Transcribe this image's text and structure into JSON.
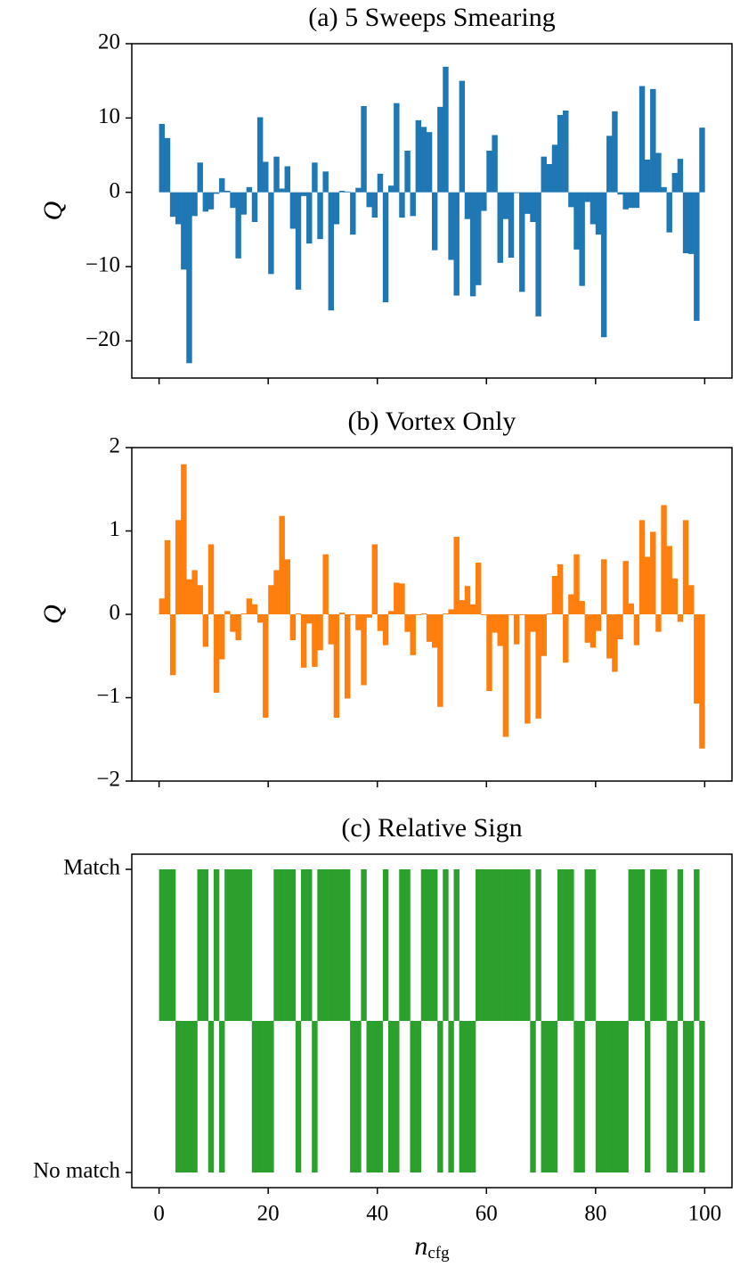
{
  "chart_data": [
    {
      "type": "bar",
      "title": "(a) 5 Sweeps Smearing",
      "ylabel": "Q",
      "color": "#1f77b4",
      "xlim": [
        -5,
        105
      ],
      "xticks": [
        0,
        20,
        40,
        60,
        80,
        100
      ],
      "ylim": [
        -25,
        20
      ],
      "yticks": [
        {
          "value": -20,
          "label": "−20"
        },
        {
          "value": -10,
          "label": "−10"
        },
        0,
        10,
        20
      ],
      "values": [
        9.2,
        7.3,
        -3.3,
        -4.3,
        -10.4,
        -23,
        -3.2,
        4.0,
        -2.6,
        -2.3,
        -0.2,
        1.9,
        0.2,
        -2.1,
        -8.9,
        -3.0,
        0.7,
        -4.0,
        10.1,
        4.1,
        -11.0,
        4.8,
        0.5,
        3.5,
        -4.9,
        -13.1,
        -0.5,
        -6.9,
        4.0,
        -6.3,
        2.8,
        -15.9,
        -4.3,
        0.2,
        0.1,
        -5.7,
        0.6,
        11.6,
        -2.0,
        -3.4,
        2.5,
        -14.8,
        0.9,
        12.0,
        -3.4,
        5.6,
        -3.2,
        9.7,
        8.8,
        8.1,
        -7.8,
        11.5,
        16.9,
        -9.1,
        -13.9,
        15.0,
        -3.6,
        -14.0,
        -12.5,
        -2.5,
        5.6,
        7.7,
        -9.5,
        -3.6,
        -8.8,
        -0.1,
        -13.4,
        -2.9,
        -4.0,
        -16.7,
        4.8,
        3.8,
        6.4,
        10.4,
        11.0,
        -2.0,
        -7.7,
        -12.6,
        -1.3,
        -4.3,
        -5.7,
        -19.5,
        7.6,
        10.9,
        -0.3,
        -2.3,
        -2.1,
        -2.1,
        14.3,
        4.4,
        13.9,
        5.3,
        0.7,
        -5.4,
        2.6,
        4.5,
        -8.2,
        -8.3,
        -17.3,
        8.7
      ]
    },
    {
      "type": "bar",
      "title": "(b) Vortex Only",
      "ylabel": "Q",
      "color": "#ff7f0e",
      "xlim": [
        -5,
        105
      ],
      "xticks": [
        0,
        20,
        40,
        60,
        80,
        100
      ],
      "ylim": [
        -2,
        2
      ],
      "yticks": [
        {
          "value": -2,
          "label": "−2"
        },
        {
          "value": -1,
          "label": "−1"
        },
        0,
        1,
        2
      ],
      "values": [
        0.19,
        0.89,
        -0.73,
        1.13,
        1.8,
        0.42,
        0.53,
        0.35,
        -0.39,
        0.84,
        -0.94,
        -0.54,
        0.04,
        -0.21,
        -0.31,
        0.01,
        0.19,
        0.12,
        -0.1,
        -1.24,
        0.35,
        0.53,
        1.18,
        0.66,
        -0.31,
        0.01,
        -0.64,
        -0.11,
        -0.63,
        -0.43,
        0.72,
        -0.36,
        -1.24,
        0.02,
        -1.01,
        -0.01,
        -0.19,
        -0.85,
        -0.04,
        0.84,
        -0.2,
        -0.37,
        0.04,
        0.38,
        0.37,
        -0.21,
        -0.49,
        -0.01,
        0.01,
        -0.33,
        -0.4,
        -1.11,
        0.01,
        0.06,
        0.93,
        0.17,
        0.34,
        0.12,
        0.62,
        -0.01,
        -0.92,
        -0.22,
        -0.38,
        -1.47,
        -0.01,
        -0.36,
        -0.01,
        -1.31,
        -0.21,
        -1.25,
        -0.5,
        0.01,
        0.46,
        0.6,
        -0.58,
        0.24,
        0.72,
        0.16,
        -0.34,
        -0.4,
        -0.2,
        0.66,
        -0.53,
        -0.69,
        -0.3,
        0.64,
        0.13,
        -0.37,
        1.13,
        0.69,
        0.99,
        -0.21,
        1.31,
        0.82,
        0.43,
        -0.09,
        1.13,
        0.35,
        -1.07,
        -1.61
      ]
    },
    {
      "type": "bar",
      "title": "(c) Relative Sign",
      "color": "#2ca02c",
      "bar_base": 0.5,
      "xlabel": "n",
      "xlabel_subscript": "cfg",
      "xlim": [
        -5,
        105
      ],
      "xticks": [
        0,
        20,
        40,
        60,
        80,
        100
      ],
      "ylim": [
        -0.05,
        1.05
      ],
      "yticks": [
        {
          "value": 0,
          "label": "No match"
        },
        {
          "value": 1,
          "label": "Match"
        }
      ],
      "values": [
        1,
        1,
        1,
        0,
        0,
        0,
        0,
        1,
        1,
        0,
        1,
        0,
        1,
        1,
        1,
        1,
        1,
        0,
        0,
        0,
        0,
        1,
        1,
        1,
        1,
        0,
        1,
        1,
        0,
        1,
        1,
        1,
        1,
        1,
        1,
        0,
        0,
        1,
        0,
        0,
        0,
        1,
        0,
        0,
        1,
        1,
        0,
        0,
        1,
        1,
        1,
        0,
        1,
        0,
        1,
        0,
        0,
        0,
        1,
        1,
        1,
        1,
        1,
        1,
        1,
        1,
        1,
        1,
        0,
        1,
        0,
        0,
        0,
        1,
        1,
        1,
        0,
        0,
        1,
        1,
        0,
        0,
        0,
        0,
        0,
        0,
        1,
        1,
        1,
        0,
        1,
        1,
        1,
        0,
        0,
        1,
        0,
        0,
        1,
        0
      ]
    }
  ]
}
